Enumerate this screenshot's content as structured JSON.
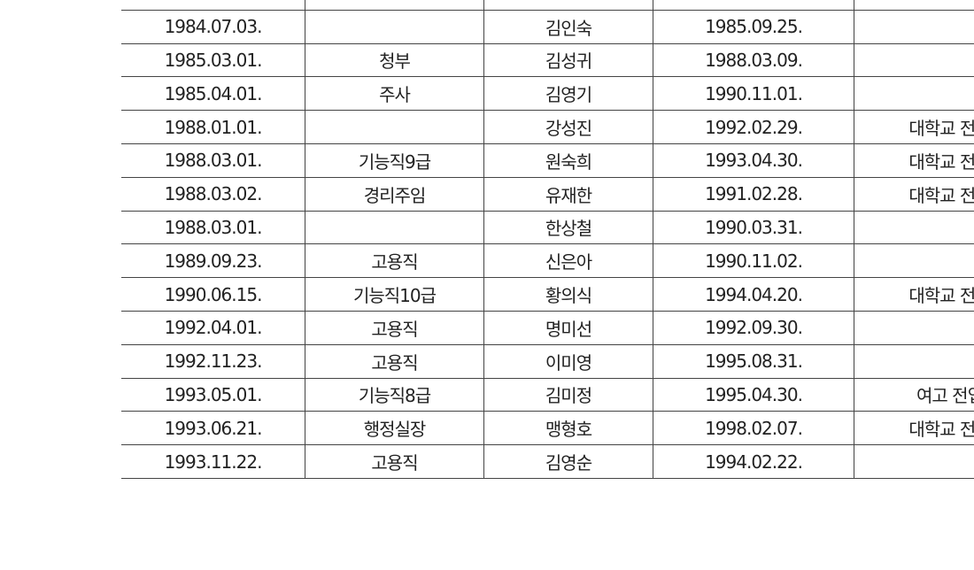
{
  "table": {
    "rows": [
      [
        "1984.07.03.",
        null,
        "김인숙",
        "1985.09.25.",
        null
      ],
      [
        "1985.03.01.",
        "청부",
        "김성귀",
        "1988.03.09.",
        null
      ],
      [
        "1985.04.01.",
        "주사",
        "김영기",
        "1990.11.01.",
        null
      ],
      [
        "1988.01.01.",
        null,
        "강성진",
        "1992.02.29.",
        "대학교 전출"
      ],
      [
        "1988.03.01.",
        "기능직9급",
        "원숙희",
        "1993.04.30.",
        "대학교 전출"
      ],
      [
        "1988.03.02.",
        "경리주임",
        "유재한",
        "1991.02.28.",
        "대학교 전출"
      ],
      [
        "1988.03.01.",
        null,
        "한상철",
        "1990.03.31.",
        null
      ],
      [
        "1989.09.23.",
        "고용직",
        "신은아",
        "1990.11.02.",
        null
      ],
      [
        "1990.06.15.",
        "기능직10급",
        "황의식",
        "1994.04.20.",
        "대학교 전출"
      ],
      [
        "1992.04.01.",
        "고용직",
        "명미선",
        "1992.09.30.",
        null
      ],
      [
        "1992.11.23.",
        "고용직",
        "이미영",
        "1995.08.31.",
        null
      ],
      [
        "1993.05.01.",
        "기능직8급",
        "김미정",
        "1995.04.30.",
        "여고 전입"
      ],
      [
        "1993.06.21.",
        "행정실장",
        "맹형호",
        "1998.02.07.",
        "대학교 전출"
      ],
      [
        "1993.11.22.",
        "고용직",
        "김영순",
        "1994.02.22.",
        null
      ]
    ]
  }
}
